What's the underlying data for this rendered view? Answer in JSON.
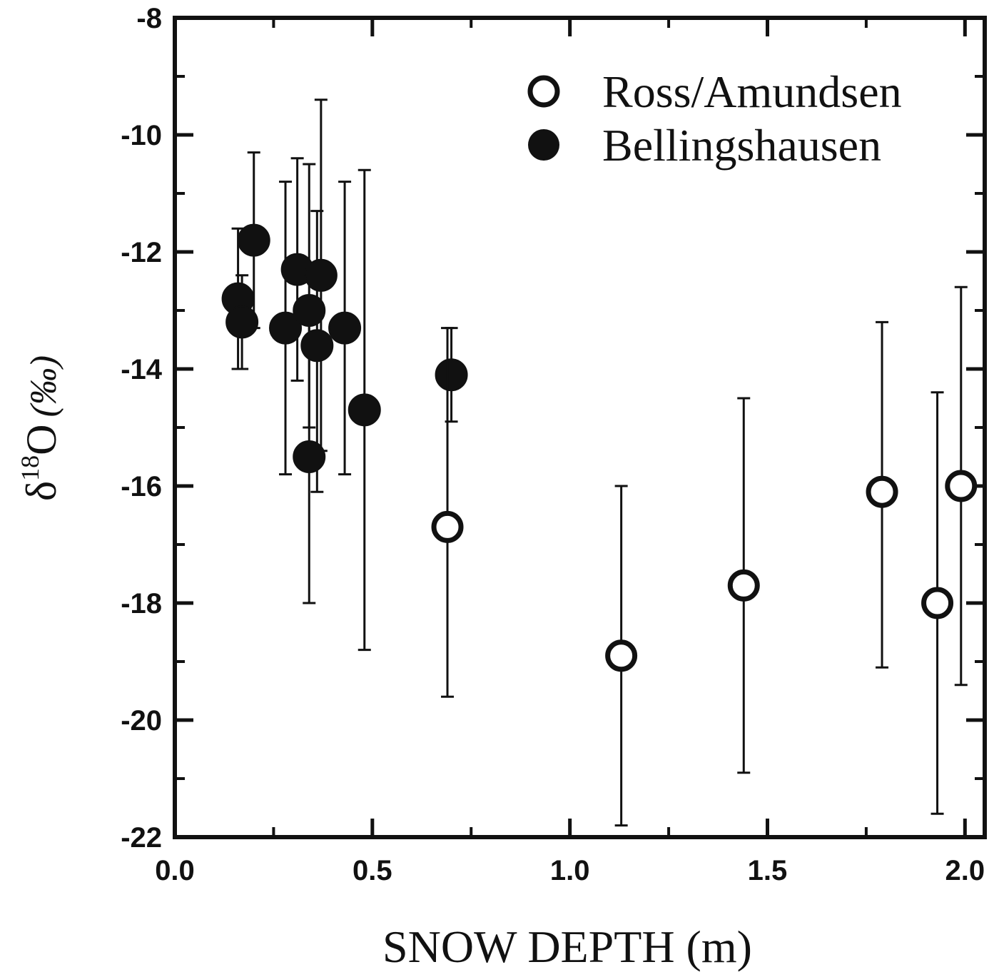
{
  "chart_data": {
    "type": "scatter",
    "title": "",
    "xlabel": "SNOW DEPTH (m)",
    "ylabel": {
      "delta": "δ",
      "sup": "18",
      "main": "O",
      "unit": "(‰)"
    },
    "xlim": [
      0.0,
      2.05
    ],
    "ylim": [
      -22,
      -8
    ],
    "x_ticks": [
      0.0,
      0.5,
      1.0,
      1.5,
      2.0
    ],
    "x_tick_labels": [
      "0.0",
      "0.5",
      "1.0",
      "1.5",
      "2.0"
    ],
    "x_minor_ticks": [
      0.25,
      0.75,
      1.25,
      1.75
    ],
    "y_ticks": [
      -8,
      -10,
      -12,
      -14,
      -16,
      -18,
      -20,
      -22
    ],
    "y_tick_labels": [
      "-8",
      "-10",
      "-12",
      "-14",
      "-16",
      "-18",
      "-20",
      "-22"
    ],
    "y_minor_ticks": [
      -9,
      -11,
      -13,
      -15,
      -17,
      -19,
      -21
    ],
    "grid": false,
    "legend_position": "top-right",
    "series": [
      {
        "name": "Ross/Amundsen",
        "marker": "open-circle",
        "color": "#111111",
        "points": [
          {
            "x": 0.69,
            "y": -16.7,
            "err_low": -19.6,
            "err_high": -13.3
          },
          {
            "x": 1.13,
            "y": -18.9,
            "err_low": -21.8,
            "err_high": -16.0
          },
          {
            "x": 1.44,
            "y": -17.7,
            "err_low": -20.9,
            "err_high": -14.5
          },
          {
            "x": 1.79,
            "y": -16.1,
            "err_low": -19.1,
            "err_high": -13.2
          },
          {
            "x": 1.93,
            "y": -18.0,
            "err_low": -21.6,
            "err_high": -14.4
          },
          {
            "x": 1.99,
            "y": -16.0,
            "err_low": -19.4,
            "err_high": -12.6
          }
        ]
      },
      {
        "name": "Bellingshausen",
        "marker": "filled-circle",
        "color": "#111111",
        "points": [
          {
            "x": 0.16,
            "y": -12.8,
            "err_low": -14.0,
            "err_high": -11.6
          },
          {
            "x": 0.17,
            "y": -13.2,
            "err_low": -14.0,
            "err_high": -12.4
          },
          {
            "x": 0.2,
            "y": -11.8,
            "err_low": -13.3,
            "err_high": -10.3
          },
          {
            "x": 0.28,
            "y": -13.3,
            "err_low": -15.8,
            "err_high": -10.8
          },
          {
            "x": 0.31,
            "y": -12.3,
            "err_low": -14.2,
            "err_high": -10.4
          },
          {
            "x": 0.34,
            "y": -13.0,
            "err_low": -15.0,
            "err_high": -10.5
          },
          {
            "x": 0.36,
            "y": -13.6,
            "err_low": -16.1,
            "err_high": -11.3
          },
          {
            "x": 0.37,
            "y": -12.4,
            "err_low": -15.4,
            "err_high": -9.4
          },
          {
            "x": 0.34,
            "y": -15.5,
            "err_low": -18.0,
            "err_high": -13.0
          },
          {
            "x": 0.43,
            "y": -13.3,
            "err_low": -15.8,
            "err_high": -10.8
          },
          {
            "x": 0.48,
            "y": -14.7,
            "err_low": -18.8,
            "err_high": -10.6
          },
          {
            "x": 0.7,
            "y": -14.1,
            "err_low": -14.9,
            "err_high": -13.3
          }
        ]
      }
    ]
  }
}
